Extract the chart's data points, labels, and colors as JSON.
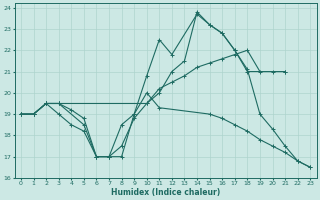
{
  "xlabel": "Humidex (Indice chaleur)",
  "xlim": [
    -0.5,
    23.5
  ],
  "ylim": [
    16,
    24.2
  ],
  "yticks": [
    16,
    17,
    18,
    19,
    20,
    21,
    22,
    23,
    24
  ],
  "xticks": [
    0,
    1,
    2,
    3,
    4,
    5,
    6,
    7,
    8,
    9,
    10,
    11,
    12,
    13,
    14,
    15,
    16,
    17,
    18,
    19,
    20,
    21,
    22,
    23
  ],
  "bg_color": "#cce8e4",
  "line_color": "#1e6b62",
  "grid_color": "#aed4ce",
  "line1_x": [
    0,
    1,
    2,
    3,
    5,
    6,
    7,
    8,
    9,
    10,
    11,
    12,
    14,
    15,
    16,
    17,
    18,
    21
  ],
  "line1_y": [
    19,
    19,
    19.5,
    19.5,
    18.5,
    17,
    17,
    17,
    19,
    20.8,
    22.5,
    21.8,
    23.7,
    23.2,
    22.8,
    22,
    21,
    21
  ],
  "line2_x": [
    0,
    1,
    2,
    3,
    4,
    5,
    6,
    7,
    8,
    9,
    10,
    11,
    15,
    16,
    17,
    18,
    19,
    20,
    21,
    22,
    23
  ],
  "line2_y": [
    19,
    19,
    19.5,
    19,
    18.5,
    18.2,
    17,
    17,
    18.5,
    19,
    20,
    19.3,
    19,
    18.8,
    18.5,
    18.2,
    17.8,
    17.5,
    17.2,
    16.8,
    16.5
  ],
  "line3_x": [
    0,
    1,
    2,
    3,
    10,
    11,
    12,
    13,
    14,
    15,
    16,
    17,
    18,
    19,
    20,
    21
  ],
  "line3_y": [
    19,
    19,
    19.5,
    19.5,
    19.5,
    20.2,
    20.5,
    20.8,
    21.2,
    21.4,
    21.6,
    21.8,
    22,
    21,
    21,
    21
  ],
  "line4_x": [
    0,
    1,
    2,
    3,
    4,
    5,
    6,
    7,
    8,
    9,
    10,
    11,
    12,
    13,
    14,
    15,
    16,
    17,
    18,
    19,
    20,
    21,
    22,
    23
  ],
  "line4_y": [
    19,
    19,
    19.5,
    19.5,
    19.2,
    18.8,
    17,
    17,
    17.5,
    18.8,
    19.5,
    20,
    21,
    21.5,
    23.8,
    23.2,
    22.8,
    22,
    21.1,
    19,
    18.3,
    17.5,
    16.8,
    16.5
  ]
}
